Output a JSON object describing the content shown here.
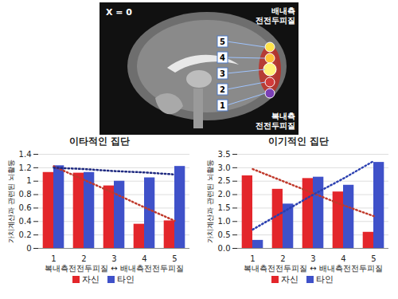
{
  "brain_image": {
    "slice_label": "X = 0",
    "top_label": "배내측 전전두피질",
    "bottom_label": "복내측 전전두피질",
    "region_labels": [
      "5",
      "4",
      "3",
      "2",
      "1"
    ]
  },
  "chart_data": [
    {
      "type": "bar",
      "title": "이타적인 집단",
      "x_label": "복내측전전두피질 ↔ 배내측전전두피질",
      "y_label": "가치계산과 관련된 뇌활동",
      "categories": [
        "1",
        "2",
        "3",
        "4",
        "5"
      ],
      "ylim": [
        0,
        1.4
      ],
      "yticks": [
        0,
        0.2,
        0.4,
        0.6,
        0.8,
        1,
        1.2,
        1.4
      ],
      "legend": "bottom",
      "series": [
        {
          "name": "자신",
          "color": "#e3262b",
          "values": [
            1.13,
            1.12,
            0.93,
            0.36,
            0.41
          ]
        },
        {
          "name": "타인",
          "color": "#3f51c9",
          "values": [
            1.23,
            1.13,
            1.0,
            1.05,
            1.22
          ]
        },
        {
          "type": "line",
          "line_style": "dotted",
          "color": "#c0392b",
          "values": [
            1.22,
            1.02,
            0.82,
            0.61,
            0.41
          ]
        },
        {
          "type": "line",
          "line_style": "dotted",
          "color": "#1f2a80",
          "values": [
            1.2,
            1.18,
            1.15,
            1.13,
            1.1
          ]
        }
      ]
    },
    {
      "type": "bar",
      "title": "이기적인 집단",
      "x_label": "복내측전전두피질 ↔ 배내측전전두피질",
      "y_label": "가치계산과 관련된 뇌활동",
      "categories": [
        "1",
        "2",
        "3",
        "4",
        "5"
      ],
      "ylim": [
        0,
        3.5
      ],
      "yticks": [
        {
          "value": 0,
          "label": "0.0"
        },
        0.5,
        {
          "value": 1,
          "label": "1.0"
        },
        1.5,
        {
          "value": 2,
          "label": "2.0"
        },
        2.5,
        {
          "value": 3,
          "label": "3.0"
        },
        3.5
      ],
      "legend": "bottom",
      "series": [
        {
          "name": "자신",
          "color": "#e3262b",
          "values": [
            2.7,
            2.2,
            2.6,
            2.1,
            0.6
          ]
        },
        {
          "name": "타인",
          "color": "#3f51c9",
          "values": [
            0.3,
            1.65,
            2.65,
            2.35,
            3.2
          ]
        },
        {
          "type": "line",
          "line_style": "dotted",
          "color": "#c0392b",
          "values": [
            2.95,
            2.5,
            2.05,
            1.6,
            1.2
          ]
        },
        {
          "type": "line",
          "line_style": "dotted",
          "color": "#2a3fb0",
          "values": [
            0.7,
            1.35,
            2.0,
            2.6,
            3.25
          ]
        }
      ]
    }
  ]
}
